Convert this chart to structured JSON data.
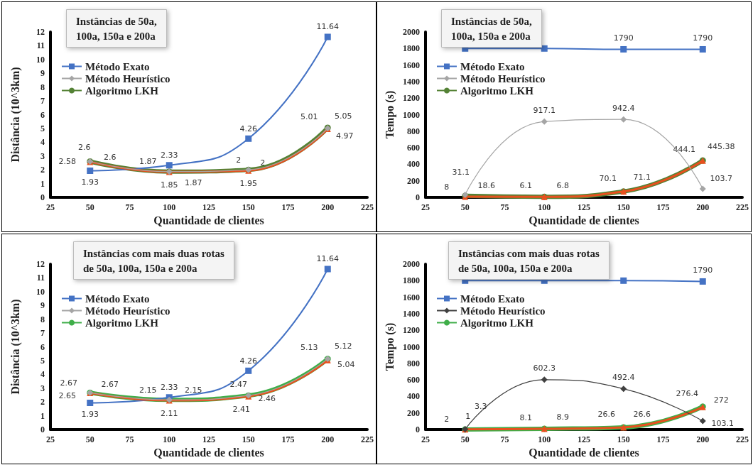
{
  "chart_data": [
    {
      "type": "line",
      "title": "Instâncias de 50a,\n100a, 150a e 200a",
      "xlabel": "Quantidade de clientes",
      "ylabel": "Distância (10^3km)",
      "x": [
        50,
        100,
        150,
        200
      ],
      "xlim": [
        25,
        225
      ],
      "xticks": [
        25,
        50,
        75,
        100,
        125,
        150,
        175,
        200,
        225
      ],
      "ylim": [
        0,
        12
      ],
      "yticks": [
        0,
        1,
        2,
        3,
        4,
        5,
        6,
        7,
        8,
        9,
        10,
        11,
        12
      ],
      "grid": false,
      "legend": "top left",
      "series": [
        {
          "name": "Método Exato",
          "color": "#4472c4",
          "marker": "square",
          "values": [
            1.93,
            2.33,
            4.26,
            11.64
          ],
          "value_labels": [
            "1.93",
            "2.33",
            "4.26",
            "11.64"
          ]
        },
        {
          "name": "Método Heurístico",
          "color": "#a5a5a5",
          "marker": "diamond",
          "values": [
            2.6,
            1.87,
            2,
            5.01
          ],
          "value_labels": [
            "2.6",
            "1.87",
            "2",
            "5.01"
          ]
        },
        {
          "color": "#e8501e",
          "marker": "triangle",
          "values": [
            2.58,
            1.85,
            1.95,
            4.97
          ],
          "value_labels": [
            "2.58",
            "1.85",
            "1.95",
            "4.97"
          ]
        },
        {
          "name": "Algoritmo LKH",
          "color": "#548235",
          "marker": "circle",
          "values": [
            2.6,
            1.87,
            2,
            5.05
          ],
          "value_labels": [
            "2.6",
            "1.87",
            "2",
            "5.05"
          ]
        }
      ]
    },
    {
      "type": "line",
      "title": "Instâncias de 50a,\n100a, 150a e 200a",
      "xlabel": "Quantidade de clientes",
      "ylabel": "Tempo (s)",
      "x": [
        50,
        100,
        150,
        200
      ],
      "xlim": [
        25,
        225
      ],
      "xticks": [
        25,
        50,
        75,
        100,
        125,
        150,
        175,
        200,
        225
      ],
      "ylim": [
        0,
        2000
      ],
      "yticks": [
        0,
        200,
        400,
        600,
        800,
        1000,
        1200,
        1400,
        1600,
        1800,
        2000
      ],
      "grid": false,
      "legend": "top left",
      "series": [
        {
          "name": "Método Exato",
          "color": "#4472c4",
          "marker": "square",
          "values": [
            1800,
            1800,
            1790,
            1790
          ],
          "value_labels": [
            null,
            null,
            "1790",
            "1790"
          ]
        },
        {
          "name": "Método Heurístico",
          "color": "#a5a5a5",
          "marker": "diamond",
          "values": [
            31.1,
            917.1,
            942.4,
            103.7
          ],
          "value_labels": [
            "31.1",
            "917.1",
            "942.4",
            "103.7"
          ]
        },
        {
          "color": "#e8501e",
          "marker": "triangle",
          "values": [
            8,
            6.1,
            70.1,
            444.1
          ],
          "value_labels": [
            "8",
            "6.1",
            "70.1",
            "444.1"
          ]
        },
        {
          "name": "Algoritmo LKH",
          "color": "#548235",
          "marker": "circle",
          "values": [
            18.6,
            6.8,
            71.1,
            445.38
          ],
          "value_labels": [
            "18.6",
            "6.8",
            "71.1",
            "445.38"
          ]
        }
      ]
    },
    {
      "type": "line",
      "title": "Instâncias com mais duas rotas\nde 50a, 100a, 150a e 200a",
      "xlabel": "Quantidade de clientes",
      "ylabel": "Distância (10^3km)",
      "x": [
        50,
        100,
        150,
        200
      ],
      "xlim": [
        25,
        225
      ],
      "xticks": [
        25,
        50,
        75,
        100,
        125,
        150,
        175,
        200,
        225
      ],
      "ylim": [
        0,
        12
      ],
      "yticks": [
        0,
        1,
        2,
        3,
        4,
        5,
        6,
        7,
        8,
        9,
        10,
        11,
        12
      ],
      "grid": false,
      "legend": "top left",
      "series": [
        {
          "name": "Método Exato",
          "color": "#4472c4",
          "marker": "square",
          "values": [
            1.93,
            2.33,
            4.26,
            11.64
          ],
          "value_labels": [
            "1.93",
            "2.33",
            "4.26",
            "11.64"
          ]
        },
        {
          "name": "Método Heurístico",
          "color": "#a5a5a5",
          "marker": "diamond",
          "values": [
            2.67,
            2.15,
            2.47,
            5.13
          ],
          "value_labels": [
            "2.67",
            "2.15",
            "2.47",
            "5.13"
          ]
        },
        {
          "color": "#e8501e",
          "marker": "triangle",
          "values": [
            2.65,
            2.11,
            2.41,
            5.04
          ],
          "value_labels": [
            "2.65",
            "2.11",
            "2.41",
            "5.04"
          ]
        },
        {
          "name": "Algoritmo LKH",
          "color": "#3fae49",
          "marker": "circle",
          "values": [
            2.67,
            2.15,
            2.46,
            5.12
          ],
          "value_labels": [
            "2.67",
            "2.15",
            "2.46",
            "5.12"
          ]
        }
      ]
    },
    {
      "type": "line",
      "title": "Instâncias com mais duas rotas\nde 50a, 100a, 150a e 200a",
      "xlabel": "Quantidade de clientes",
      "ylabel": "Tempo (s)",
      "x": [
        50,
        100,
        150,
        200
      ],
      "xlim": [
        25,
        225
      ],
      "xticks": [
        25,
        50,
        75,
        100,
        125,
        150,
        175,
        200,
        225
      ],
      "ylim": [
        0,
        2000
      ],
      "yticks": [
        0,
        200,
        400,
        600,
        800,
        1000,
        1200,
        1400,
        1600,
        1800,
        2000
      ],
      "grid": false,
      "legend": "top left",
      "series": [
        {
          "name": "Método Exato",
          "color": "#4472c4",
          "marker": "square",
          "values": [
            1800,
            1800,
            1800,
            1790
          ],
          "value_labels": [
            null,
            null,
            null,
            "1790"
          ]
        },
        {
          "name": "Método Heurístico",
          "color": "#404040",
          "marker": "diamond",
          "values": [
            3.3,
            602.3,
            492.4,
            103.1
          ],
          "value_labels": [
            "3.3",
            "602.3",
            "492.4",
            "103.1"
          ]
        },
        {
          "color": "#e8501e",
          "marker": "triangle",
          "values": [
            2,
            8.1,
            26.6,
            272
          ],
          "value_labels": [
            "2",
            "8.1",
            "26.6",
            "272"
          ]
        },
        {
          "name": "Algoritmo LKH",
          "color": "#3fae49",
          "marker": "circle",
          "values": [
            1,
            8.9,
            26.6,
            276.4
          ],
          "value_labels": [
            "1",
            "8.9",
            "26.6",
            "276.4"
          ]
        }
      ]
    }
  ]
}
